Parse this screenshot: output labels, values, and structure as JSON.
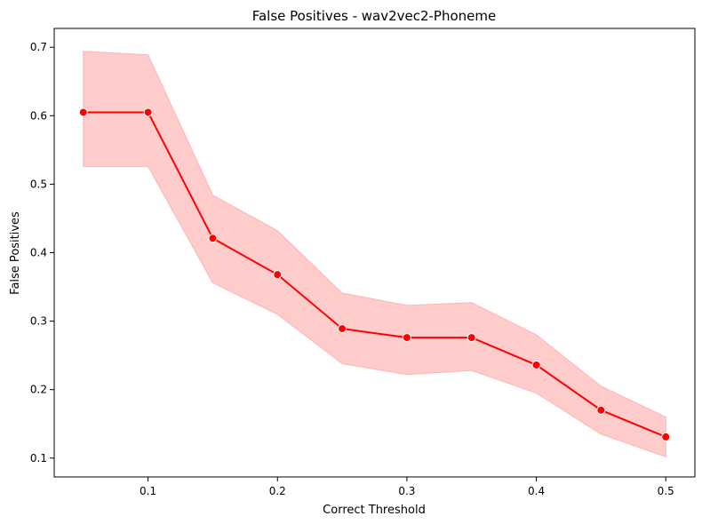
{
  "chart_data": {
    "type": "line",
    "title": "False Positives - wav2vec2-Phoneme",
    "xlabel": "Correct Threshold",
    "ylabel": "False Positives",
    "xlim": [
      0.0275,
      0.5225
    ],
    "ylim": [
      0.0725,
      0.7275
    ],
    "x_ticks": [
      0.1,
      0.2,
      0.3,
      0.4,
      0.5
    ],
    "y_ticks": [
      0.1,
      0.2,
      0.3,
      0.4,
      0.5,
      0.6,
      0.7
    ],
    "grid": false,
    "line_color": "#ff0000",
    "band_color": "#ffcccc",
    "band_edge_color": "#ffb3b3",
    "series": [
      {
        "x": [
          0.05,
          0.1,
          0.15,
          0.2,
          0.25,
          0.3,
          0.35,
          0.4,
          0.45,
          0.5
        ],
        "y": [
          0.605,
          0.605,
          0.421,
          0.368,
          0.289,
          0.276,
          0.276,
          0.236,
          0.17,
          0.131
        ],
        "lower": [
          0.526,
          0.526,
          0.356,
          0.31,
          0.238,
          0.222,
          0.228,
          0.195,
          0.135,
          0.102
        ],
        "upper": [
          0.694,
          0.689,
          0.484,
          0.432,
          0.341,
          0.323,
          0.327,
          0.28,
          0.205,
          0.16
        ]
      }
    ]
  }
}
